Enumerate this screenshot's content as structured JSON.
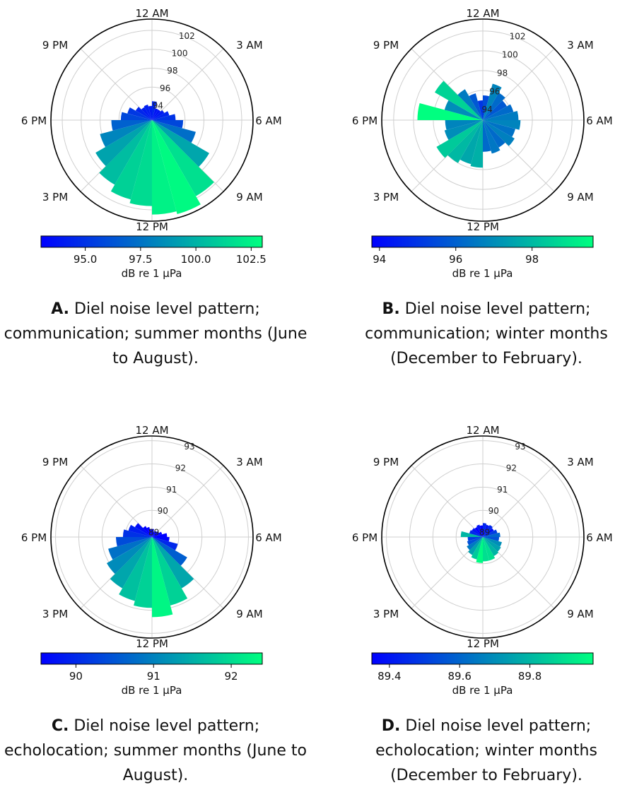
{
  "chart_data": [
    {
      "type": "polar-bar",
      "theta_labels": [
        "12 AM",
        "3 AM",
        "6 AM",
        "9 AM",
        "12 PM",
        "3 PM",
        "6 PM",
        "9 PM"
      ],
      "r_ticks": [
        94,
        96,
        98,
        100,
        102
      ],
      "r_range": [
        92.5,
        103.2
      ],
      "hours": [
        0,
        1,
        2,
        3,
        4,
        5,
        6,
        7,
        8,
        9,
        10,
        11,
        12,
        13,
        14,
        15,
        16,
        17,
        18,
        19,
        20,
        21,
        22,
        23
      ],
      "values": [
        94.5,
        93.8,
        93.8,
        94.0,
        94.4,
        95.0,
        95.8,
        97.3,
        99.5,
        101.8,
        102.8,
        102.5,
        101.6,
        101.2,
        100.4,
        99.4,
        98.2,
        96.8,
        95.8,
        95.2,
        94.5,
        94.1,
        94.2,
        94.0
      ],
      "colorbar": {
        "ticks": [
          "95.0",
          "97.5",
          "100.0",
          "102.5"
        ],
        "tick_values": [
          95,
          97.5,
          100,
          102.5
        ],
        "min": 93.0,
        "max": 103.0,
        "label": "dB re 1 μPa"
      },
      "caption_bold": "A.",
      "caption_text": "Diel noise level pattern; communication; summer months (June to August)."
    },
    {
      "type": "polar-bar",
      "theta_labels": [
        "12 AM",
        "3 AM",
        "6 AM",
        "9 AM",
        "12 PM",
        "3 PM",
        "6 PM",
        "9 PM"
      ],
      "r_ticks": [
        94,
        96,
        98,
        100,
        102
      ],
      "r_range": [
        93.0,
        103.2
      ],
      "hours": [
        0,
        1,
        2,
        3,
        4,
        5,
        6,
        7,
        8,
        9,
        10,
        11,
        12,
        13,
        14,
        15,
        16,
        17,
        18,
        19,
        20,
        21,
        22,
        23
      ],
      "values": [
        95.5,
        96.8,
        96.2,
        95.8,
        96.2,
        96.6,
        96.8,
        96.4,
        96.7,
        96.2,
        96.5,
        96.2,
        97.8,
        97.6,
        98.0,
        98.4,
        97.0,
        96.8,
        99.6,
        97.0,
        98.6,
        96.6,
        95.8,
        95.0
      ],
      "colorbar": {
        "ticks": [
          "94",
          "96",
          "98"
        ],
        "tick_values": [
          94,
          96,
          98
        ],
        "min": 93.8,
        "max": 99.6,
        "label": "dB re 1 μPa"
      },
      "caption_bold": "B.",
      "caption_text": "Diel noise level pattern; communication; winter months (December to February)."
    },
    {
      "type": "polar-bar",
      "theta_labels": [
        "12 AM",
        "3 AM",
        "6 AM",
        "9 AM",
        "12 PM",
        "3 PM",
        "6 PM",
        "9 PM"
      ],
      "r_ticks": [
        89,
        90,
        91,
        92,
        93
      ],
      "r_range": [
        88.85,
        93.2
      ],
      "hours": [
        0,
        1,
        2,
        3,
        4,
        5,
        6,
        7,
        8,
        9,
        10,
        11,
        12,
        13,
        14,
        15,
        16,
        17,
        18,
        19,
        20,
        21,
        22,
        23
      ],
      "values": [
        89.2,
        89.1,
        89.15,
        89.2,
        89.3,
        89.5,
        89.6,
        90.0,
        90.6,
        91.4,
        91.9,
        92.3,
        91.9,
        91.7,
        91.4,
        91.1,
        90.8,
        90.4,
        90.1,
        89.9,
        89.7,
        89.4,
        89.3,
        89.2
      ],
      "colorbar": {
        "ticks": [
          "90",
          "91",
          "92"
        ],
        "tick_values": [
          90,
          91,
          92
        ],
        "min": 89.55,
        "max": 92.4,
        "label": "dB re 1 μPa"
      },
      "caption_bold": "C.",
      "caption_text": "Diel noise level pattern; echolocation; summer months (June to August)."
    },
    {
      "type": "polar-bar",
      "theta_labels": [
        "12 AM",
        "3 AM",
        "6 AM",
        "9 AM",
        "12 PM",
        "3 PM",
        "6 PM",
        "9 PM"
      ],
      "r_ticks": [
        89,
        90,
        91,
        92,
        93
      ],
      "r_range": [
        88.85,
        93.2
      ],
      "hours": [
        0,
        1,
        2,
        3,
        4,
        5,
        6,
        7,
        8,
        9,
        10,
        11,
        12,
        13,
        14,
        15,
        16,
        17,
        18,
        19,
        20,
        21,
        22,
        23
      ],
      "values": [
        89.45,
        89.4,
        89.45,
        89.4,
        89.5,
        89.6,
        89.55,
        89.7,
        89.75,
        89.8,
        89.9,
        89.9,
        89.97,
        89.85,
        89.75,
        89.65,
        89.55,
        89.5,
        89.8,
        89.45,
        89.4,
        89.35,
        89.4,
        89.35
      ],
      "colorbar": {
        "ticks": [
          "89.4",
          "89.6",
          "89.8"
        ],
        "tick_values": [
          89.4,
          89.6,
          89.8
        ],
        "min": 89.35,
        "max": 89.98,
        "label": "dB re 1 μPa"
      },
      "caption_bold": "D.",
      "caption_text": "Diel noise level pattern; echolocation; winter months (December to February)."
    }
  ]
}
